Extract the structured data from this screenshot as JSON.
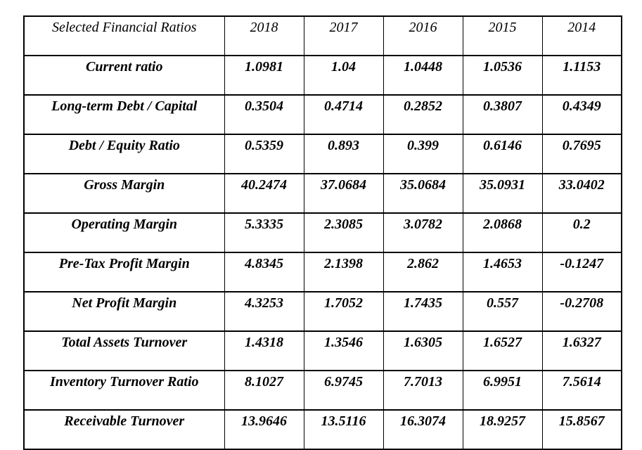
{
  "page": {
    "background_color": "#ffffff",
    "border_color": "#000000",
    "text_color": "#000000"
  },
  "chart_data": {
    "type": "table",
    "title": "Selected Financial Ratios",
    "categories": [
      "2018",
      "2017",
      "2016",
      "2015",
      "2014"
    ],
    "series": [
      {
        "name": "Current ratio",
        "values": [
          1.0981,
          1.04,
          1.0448,
          1.0536,
          1.1153
        ]
      },
      {
        "name": "Long-term Debt / Capital",
        "values": [
          0.3504,
          0.4714,
          0.2852,
          0.3807,
          0.4349
        ]
      },
      {
        "name": "Debt / Equity Ratio",
        "values": [
          0.5359,
          0.893,
          0.399,
          0.6146,
          0.7695
        ]
      },
      {
        "name": "Gross Margin",
        "values": [
          40.2474,
          37.0684,
          35.0684,
          35.0931,
          33.0402
        ]
      },
      {
        "name": "Operating Margin",
        "values": [
          5.3335,
          2.3085,
          3.0782,
          2.0868,
          0.2
        ]
      },
      {
        "name": "Pre-Tax Profit Margin",
        "values": [
          4.8345,
          2.1398,
          2.862,
          1.4653,
          -0.1247
        ]
      },
      {
        "name": "Net Profit Margin",
        "values": [
          4.3253,
          1.7052,
          1.7435,
          0.557,
          -0.2708
        ]
      },
      {
        "name": "Total Assets Turnover",
        "values": [
          1.4318,
          1.3546,
          1.6305,
          1.6527,
          1.6327
        ]
      },
      {
        "name": "Inventory Turnover Ratio",
        "values": [
          8.1027,
          6.9745,
          7.7013,
          6.9951,
          7.5614
        ]
      },
      {
        "name": "Receivable Turnover",
        "values": [
          13.9646,
          13.5116,
          16.3074,
          18.9257,
          15.8567
        ]
      }
    ],
    "layout": {
      "header_style": "italic",
      "body_style": "bold-italic",
      "grid": "all-borders",
      "value_alignment": "center"
    }
  }
}
